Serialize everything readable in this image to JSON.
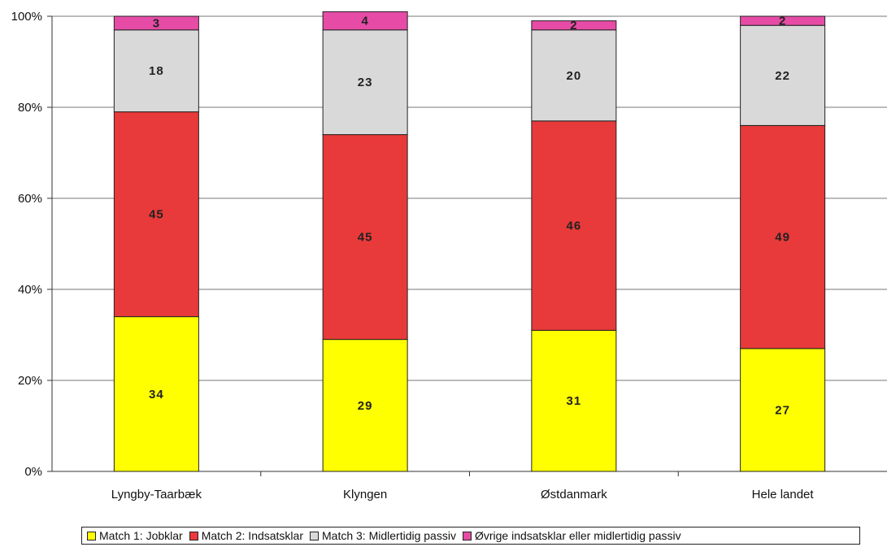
{
  "chart_data": {
    "type": "bar",
    "stacked": true,
    "percent": true,
    "categories": [
      "Lyngby-Taarbæk",
      "Klyngen",
      "Østdanmark",
      "Hele landet"
    ],
    "series": [
      {
        "name": "Match 1: Jobklar",
        "values": [
          34,
          29,
          31,
          27
        ],
        "color": "#ffff00"
      },
      {
        "name": "Match 2: Indsatsklar",
        "values": [
          45,
          45,
          46,
          49
        ],
        "color": "#e83a3a"
      },
      {
        "name": "Match 3: Midlertidig passiv",
        "values": [
          18,
          23,
          20,
          22
        ],
        "color": "#d9d9d9"
      },
      {
        "name": "Øvrige indsatsklar eller midlertidig passiv",
        "values": [
          3,
          4,
          2,
          2
        ],
        "color": "#e64ca6"
      }
    ],
    "data_labels": [
      [
        "34",
        "29",
        "31",
        "27"
      ],
      [
        "45",
        "45",
        "46",
        "49"
      ],
      [
        "18",
        "23",
        "20",
        "22"
      ],
      [
        "3",
        "4",
        "2",
        "2"
      ]
    ],
    "ylim": [
      0,
      100
    ],
    "yticks": [
      "0%",
      "20%",
      "40%",
      "60%",
      "80%",
      "100%"
    ],
    "grid": true,
    "legend_position": "bottom"
  }
}
